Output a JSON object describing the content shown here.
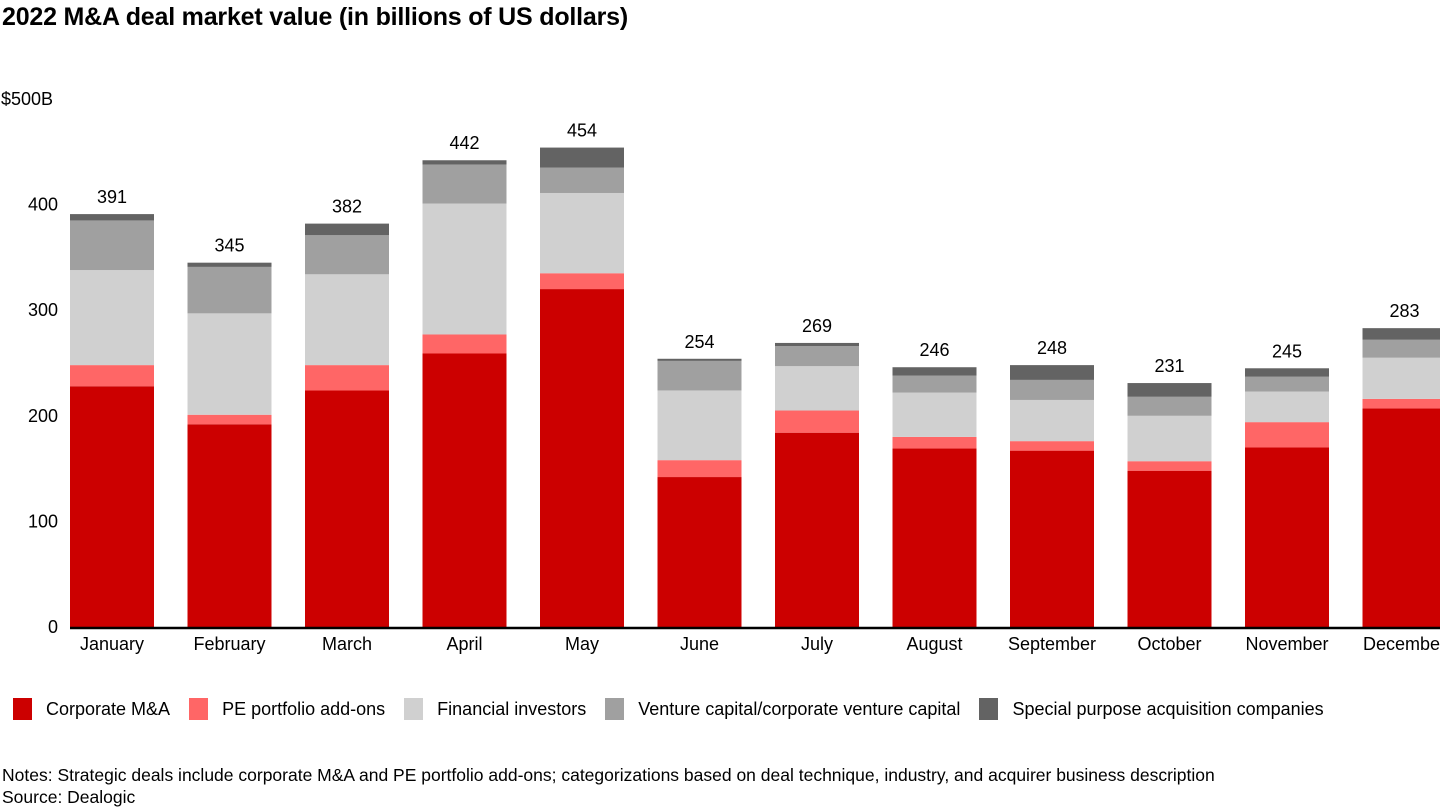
{
  "chart_data": {
    "type": "bar",
    "stacked": true,
    "title": "2022 M&A deal market value (in billions of US dollars)",
    "xlabel": "",
    "ylabel": "",
    "ylim": [
      0,
      500
    ],
    "y_ticks": [
      0,
      100,
      200,
      300,
      400,
      500
    ],
    "y_tick_labels": [
      "0",
      "100",
      "200",
      "300",
      "400",
      "$500B"
    ],
    "grid": false,
    "legend_position": "bottom",
    "categories": [
      "January",
      "February",
      "March",
      "April",
      "May",
      "June",
      "July",
      "August",
      "September",
      "October",
      "November",
      "December"
    ],
    "totals": [
      391,
      345,
      382,
      442,
      454,
      254,
      269,
      246,
      248,
      231,
      245,
      283
    ],
    "series": [
      {
        "name": "Corporate M&A",
        "color": "#cc0000",
        "values": [
          228,
          192,
          224,
          259,
          320,
          142,
          184,
          169,
          167,
          148,
          170,
          207
        ]
      },
      {
        "name": "PE portfolio add-ons",
        "color": "#ff6666",
        "values": [
          20,
          9,
          24,
          18,
          15,
          16,
          21,
          11,
          9,
          9,
          24,
          9
        ]
      },
      {
        "name": "Financial investors",
        "color": "#d0d0d0",
        "values": [
          90,
          96,
          86,
          124,
          76,
          66,
          42,
          42,
          39,
          43,
          29,
          39
        ]
      },
      {
        "name": "Venture capital/corporate venture capital",
        "color": "#a0a0a0",
        "values": [
          47,
          44,
          37,
          37,
          24,
          28,
          19,
          16,
          19,
          18,
          14,
          17
        ]
      },
      {
        "name": "Special purpose acquisition companies",
        "color": "#636363",
        "values": [
          6,
          4,
          11,
          4,
          19,
          2,
          3,
          8,
          14,
          13,
          8,
          11
        ]
      }
    ]
  },
  "notes": "Notes: Strategic deals include corporate M&A and PE portfolio add-ons; categorizations based on deal technique, industry, and acquirer business description",
  "source": "Source: Dealogic"
}
